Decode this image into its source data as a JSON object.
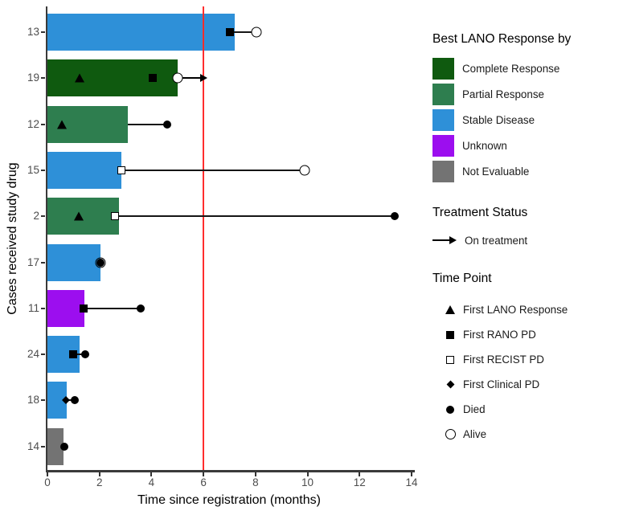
{
  "chart_data": {
    "type": "bar",
    "orientation": "horizontal",
    "xlabel": "Time since registration (months)",
    "ylabel": "Cases received study drug",
    "xlim": [
      0,
      14
    ],
    "xticks": [
      0,
      2,
      4,
      6,
      8,
      10,
      12,
      14
    ],
    "grid": false,
    "reference_line_x": 6,
    "reference_line_color": "#ff2d2d",
    "categories": [
      "13",
      "19",
      "12",
      "15",
      "2",
      "17",
      "11",
      "24",
      "18",
      "14"
    ],
    "response_colors": {
      "Complete Response": "#0f5a0f",
      "Partial Response": "#2e7e4f",
      "Stable Disease": "#2e90d8",
      "Unknown": "#9c0eef",
      "Not Evaluable": "#737373"
    },
    "bars": [
      {
        "case": "13",
        "response": "Stable Disease",
        "length": 7.2,
        "segment": [
          7.0,
          8.05
        ],
        "markers": [
          {
            "symbol": "square",
            "timepoint": "First RANO PD",
            "x": 7.0
          },
          {
            "symbol": "circle",
            "timepoint": "Alive",
            "x": 8.05
          }
        ]
      },
      {
        "case": "19",
        "response": "Complete Response",
        "length": 5.0,
        "arrow": {
          "from": 5.1,
          "to": 6.15,
          "label": "On treatment"
        },
        "markers": [
          {
            "symbol": "triangle",
            "timepoint": "First LANO Response",
            "x": 1.25
          },
          {
            "symbol": "square",
            "timepoint": "First RANO PD",
            "x": 4.05
          },
          {
            "symbol": "circle",
            "timepoint": "Alive",
            "x": 5.0
          }
        ]
      },
      {
        "case": "12",
        "response": "Partial Response",
        "length": 3.1,
        "segment": [
          3.1,
          4.6
        ],
        "markers": [
          {
            "symbol": "triangle",
            "timepoint": "First LANO Response",
            "x": 0.55
          },
          {
            "symbol": "dot",
            "timepoint": "Died",
            "x": 4.6
          }
        ]
      },
      {
        "case": "15",
        "response": "Stable Disease",
        "length": 2.85,
        "segment": [
          2.85,
          9.9
        ],
        "markers": [
          {
            "symbol": "square-open",
            "timepoint": "First RECIST PD",
            "x": 2.85
          },
          {
            "symbol": "circle",
            "timepoint": "Alive",
            "x": 9.9
          }
        ]
      },
      {
        "case": "2",
        "response": "Partial Response",
        "length": 2.75,
        "segment": [
          2.6,
          13.35
        ],
        "markers": [
          {
            "symbol": "triangle",
            "timepoint": "First LANO Response",
            "x": 1.2
          },
          {
            "symbol": "square-open",
            "timepoint": "First RECIST PD",
            "x": 2.6
          },
          {
            "symbol": "dot",
            "timepoint": "Died",
            "x": 13.35
          }
        ]
      },
      {
        "case": "17",
        "response": "Stable Disease",
        "length": 2.05,
        "markers": [
          {
            "symbol": "dot",
            "timepoint": "Died",
            "x": 2.05
          },
          {
            "symbol": "circle",
            "timepoint": "Alive",
            "x": 2.05,
            "overlay": true
          }
        ]
      },
      {
        "case": "11",
        "response": "Unknown",
        "length": 1.42,
        "segment": [
          1.38,
          3.6
        ],
        "markers": [
          {
            "symbol": "square",
            "timepoint": "First RANO PD",
            "x": 1.38
          },
          {
            "symbol": "dot",
            "timepoint": "Died",
            "x": 3.6
          }
        ]
      },
      {
        "case": "24",
        "response": "Stable Disease",
        "length": 1.25,
        "segment": [
          1.0,
          1.45
        ],
        "markers": [
          {
            "symbol": "square",
            "timepoint": "First RANO PD",
            "x": 1.0
          },
          {
            "symbol": "dot",
            "timepoint": "Died",
            "x": 1.45
          }
        ]
      },
      {
        "case": "18",
        "response": "Stable Disease",
        "length": 0.75,
        "segment": [
          0.7,
          1.05
        ],
        "markers": [
          {
            "symbol": "diamond",
            "timepoint": "First Clinical PD",
            "x": 0.7
          },
          {
            "symbol": "dot",
            "timepoint": "Died",
            "x": 1.05
          }
        ]
      },
      {
        "case": "14",
        "response": "Not Evaluable",
        "length": 0.62,
        "markers": [
          {
            "symbol": "dot",
            "timepoint": "Died",
            "x": 0.65
          }
        ]
      }
    ]
  },
  "legend": {
    "response_title": "Best LANO Response by",
    "response_items": [
      {
        "label": "Complete Response",
        "color": "#0f5a0f"
      },
      {
        "label": "Partial Response",
        "color": "#2e7e4f"
      },
      {
        "label": "Stable Disease",
        "color": "#2e90d8"
      },
      {
        "label": "Unknown",
        "color": "#9c0eef"
      },
      {
        "label": "Not Evaluable",
        "color": "#737373"
      }
    ],
    "treatment_title": "Treatment Status",
    "treatment_items": [
      {
        "symbol": "arrow",
        "label": "On treatment"
      }
    ],
    "timepoint_title": "Time Point",
    "timepoint_items": [
      {
        "symbol": "triangle",
        "label": "First LANO Response"
      },
      {
        "symbol": "square",
        "label": "First RANO PD"
      },
      {
        "symbol": "square-open",
        "label": "First RECIST PD"
      },
      {
        "symbol": "diamond",
        "label": "First Clinical PD"
      },
      {
        "symbol": "dot",
        "label": "Died"
      },
      {
        "symbol": "circle",
        "label": "Alive"
      }
    ]
  }
}
